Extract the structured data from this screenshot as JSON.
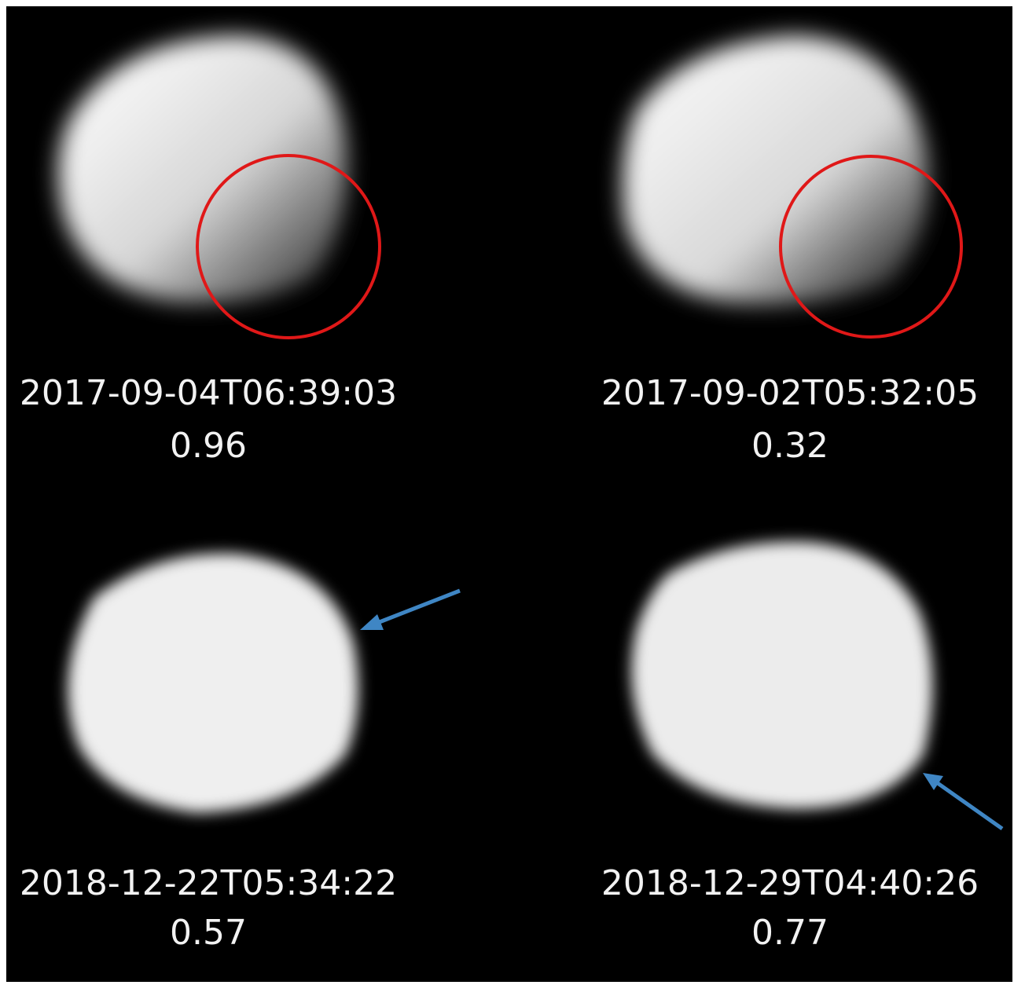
{
  "panels": [
    {
      "timestamp": "2017-09-04T06:39:03",
      "value": "0.96"
    },
    {
      "timestamp": "2017-09-02T05:32:05",
      "value": "0.32"
    },
    {
      "timestamp": "2018-12-22T05:34:22",
      "value": "0.57"
    },
    {
      "timestamp": "2018-12-29T04:40:26",
      "value": "0.77"
    }
  ]
}
